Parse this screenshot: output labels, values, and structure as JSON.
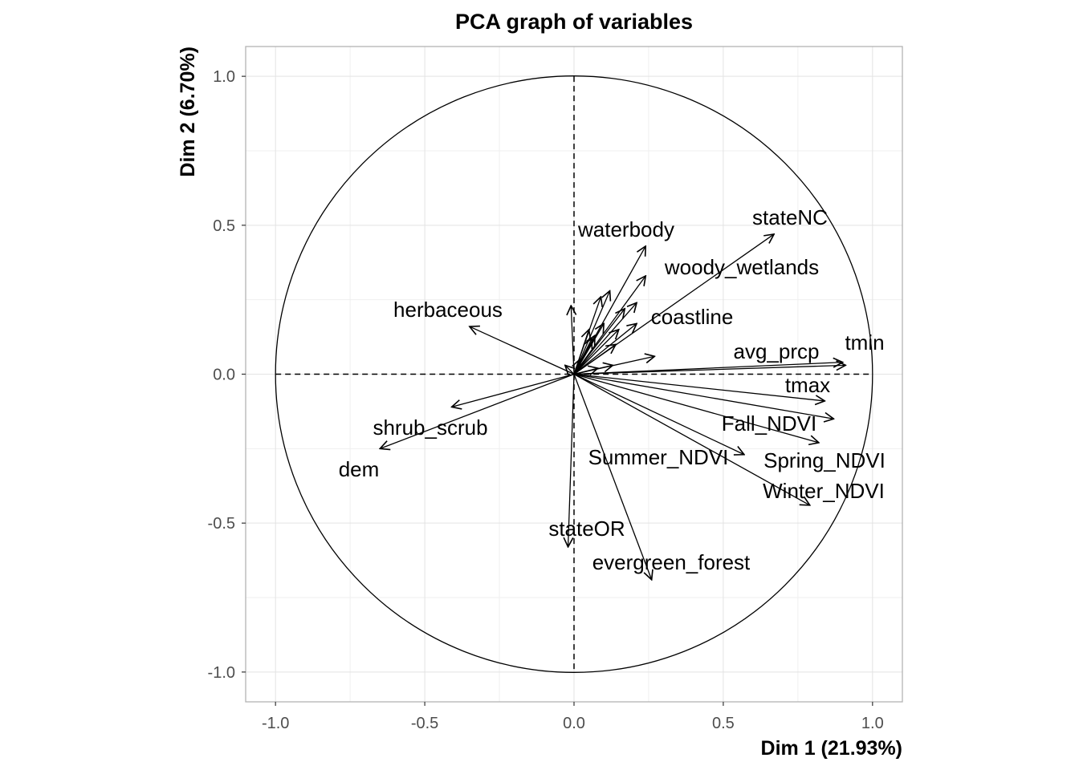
{
  "chart_data": {
    "type": "scatter",
    "title": "PCA graph of variables",
    "xlabel": "Dim 1 (21.93%)",
    "ylabel": "Dim 2 (6.70%)",
    "xlim": [
      -1.1,
      1.1
    ],
    "ylim": [
      -1.1,
      1.1
    ],
    "x_ticks": [
      -1.0,
      -0.5,
      0.0,
      0.5,
      1.0
    ],
    "y_ticks": [
      -1.0,
      -0.5,
      0.0,
      0.5,
      1.0
    ],
    "x_tick_labels": [
      "-1.0",
      "-0.5",
      "0.0",
      "0.5",
      "1.0"
    ],
    "y_tick_labels": [
      "-1.0",
      "-0.5",
      "0.0",
      "0.5",
      "1.0"
    ],
    "grid": true,
    "correlation_circle": true,
    "labeled_vectors": [
      {
        "name": "waterbody",
        "x": 0.24,
        "y": 0.43
      },
      {
        "name": "stateNC",
        "x": 0.67,
        "y": 0.47
      },
      {
        "name": "woody_wetlands",
        "x": 0.24,
        "y": 0.33
      },
      {
        "name": "herbaceous",
        "x": -0.35,
        "y": 0.16
      },
      {
        "name": "coastline",
        "x": 0.21,
        "y": 0.17
      },
      {
        "name": "avg_prcp",
        "x": 0.9,
        "y": 0.04
      },
      {
        "name": "tmin",
        "x": 0.91,
        "y": 0.03
      },
      {
        "name": "tmax",
        "x": 0.84,
        "y": -0.09
      },
      {
        "name": "Fall_NDVI",
        "x": 0.87,
        "y": -0.15
      },
      {
        "name": "shrub_scrub",
        "x": -0.41,
        "y": -0.11
      },
      {
        "name": "Spring_NDVI",
        "x": 0.82,
        "y": -0.23
      },
      {
        "name": "dem",
        "x": -0.65,
        "y": -0.25
      },
      {
        "name": "Summer_NDVI",
        "x": 0.57,
        "y": -0.27
      },
      {
        "name": "Winter_NDVI",
        "x": 0.79,
        "y": -0.44
      },
      {
        "name": "stateOR",
        "x": -0.02,
        "y": -0.58
      },
      {
        "name": "evergreen_forest",
        "x": 0.26,
        "y": -0.69
      }
    ],
    "unlabeled_vectors": [
      {
        "x": -0.01,
        "y": 0.23
      },
      {
        "x": 0.12,
        "y": 0.28
      },
      {
        "x": 0.09,
        "y": 0.26
      },
      {
        "x": 0.21,
        "y": 0.24
      },
      {
        "x": 0.17,
        "y": 0.22
      },
      {
        "x": 0.05,
        "y": 0.15
      },
      {
        "x": 0.1,
        "y": 0.17
      },
      {
        "x": 0.15,
        "y": 0.15
      },
      {
        "x": 0.07,
        "y": 0.13
      },
      {
        "x": 0.06,
        "y": 0.12
      },
      {
        "x": 0.14,
        "y": 0.1
      },
      {
        "x": 0.27,
        "y": 0.06
      },
      {
        "x": 0.13,
        "y": 0.03
      },
      {
        "x": 0.08,
        "y": 0.02
      },
      {
        "x": -0.03,
        "y": 0.03
      },
      {
        "x": 0.02,
        "y": 0.05
      }
    ]
  }
}
